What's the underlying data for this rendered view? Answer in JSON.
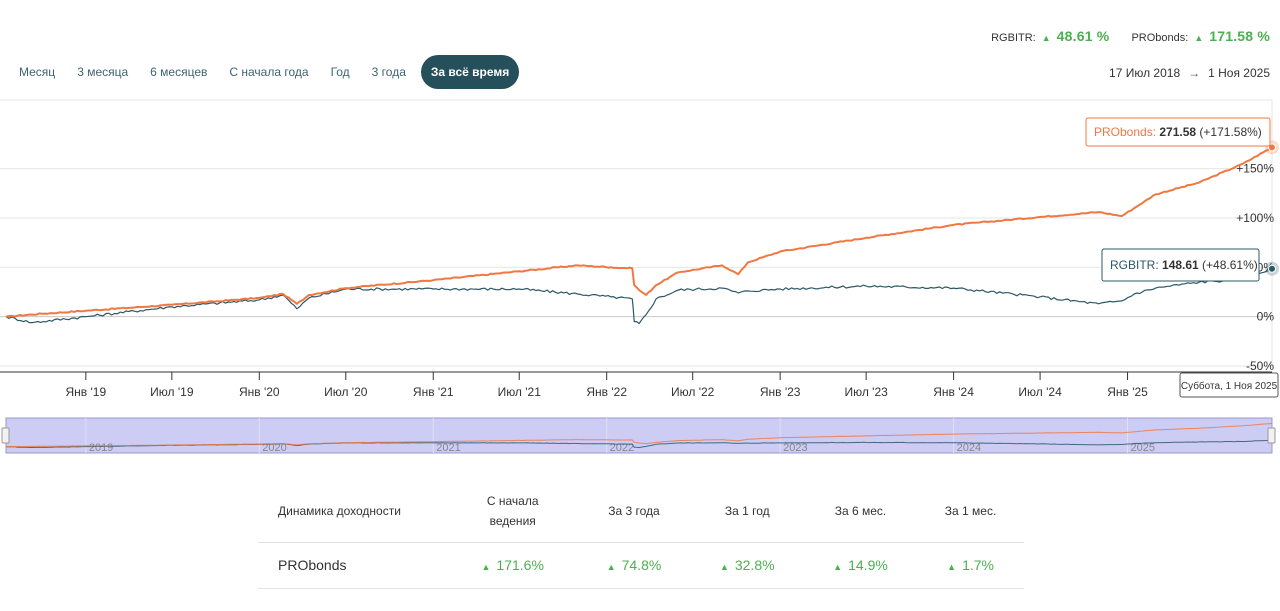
{
  "summary": [
    {
      "name": "RGBITR:",
      "value": "48.61 %"
    },
    {
      "name": "PRObonds:",
      "value": "171.58 %"
    }
  ],
  "tabs": [
    {
      "label": "Месяц",
      "active": false
    },
    {
      "label": "3 месяца",
      "active": false
    },
    {
      "label": "6 месяцев",
      "active": false
    },
    {
      "label": "С начала года",
      "active": false
    },
    {
      "label": "Год",
      "active": false
    },
    {
      "label": "3 года",
      "active": false
    },
    {
      "label": "За всё время",
      "active": true
    }
  ],
  "date_range": {
    "from": "17 Июл 2018",
    "arrow": "→",
    "to": "1 Ноя 2025"
  },
  "colors": {
    "probonds": "#f07840",
    "rgbitr": "#2d5866",
    "accent": "#264f5c",
    "positive": "#4caf50"
  },
  "chart_data": {
    "type": "line",
    "x_range": [
      "2018-07-17",
      "2025-11-01"
    ],
    "ylim": [
      -50,
      175
    ],
    "y_ticks": [
      {
        "value": 150,
        "label": "+150%"
      },
      {
        "value": 100,
        "label": "+100%"
      },
      {
        "value": 50,
        "label": "+50%"
      },
      {
        "value": 0,
        "label": "0%"
      },
      {
        "value": -50,
        "label": "-50%"
      }
    ],
    "x_ticks": [
      {
        "date": "2019-01-01",
        "label": "Янв '19"
      },
      {
        "date": "2019-07-01",
        "label": "Июл '19"
      },
      {
        "date": "2020-01-01",
        "label": "Янв '20"
      },
      {
        "date": "2020-07-01",
        "label": "Июл '20"
      },
      {
        "date": "2021-01-01",
        "label": "Янв '21"
      },
      {
        "date": "2021-07-01",
        "label": "Июл '21"
      },
      {
        "date": "2022-01-01",
        "label": "Янв '22"
      },
      {
        "date": "2022-07-01",
        "label": "Июл '22"
      },
      {
        "date": "2023-01-01",
        "label": "Янв '23"
      },
      {
        "date": "2023-07-01",
        "label": "Июл '23"
      },
      {
        "date": "2024-01-01",
        "label": "Янв '24"
      },
      {
        "date": "2024-07-01",
        "label": "Июл '24"
      },
      {
        "date": "2025-01-01",
        "label": "Янв '25"
      }
    ],
    "navigator_years": [
      {
        "date": "2019-01-01",
        "label": "2019"
      },
      {
        "date": "2020-01-01",
        "label": "2020"
      },
      {
        "date": "2021-01-01",
        "label": "2021"
      },
      {
        "date": "2022-01-01",
        "label": "2022"
      },
      {
        "date": "2023-01-01",
        "label": "2023"
      },
      {
        "date": "2024-01-01",
        "label": "2024"
      },
      {
        "date": "2025-01-01",
        "label": "2025"
      }
    ],
    "series": [
      {
        "name": "PRObonds",
        "color": "#f07840",
        "points": [
          [
            "2018-07-17",
            0
          ],
          [
            "2018-10-01",
            3
          ],
          [
            "2019-01-01",
            6
          ],
          [
            "2019-07-01",
            12
          ],
          [
            "2020-01-01",
            19
          ],
          [
            "2020-02-20",
            23
          ],
          [
            "2020-03-20",
            13
          ],
          [
            "2020-04-15",
            22
          ],
          [
            "2020-07-01",
            29
          ],
          [
            "2021-01-01",
            37
          ],
          [
            "2021-07-01",
            46
          ],
          [
            "2021-11-01",
            52
          ],
          [
            "2022-01-10",
            50
          ],
          [
            "2022-02-24",
            49
          ],
          [
            "2022-02-28",
            32
          ],
          [
            "2022-03-10",
            27
          ],
          [
            "2022-03-25",
            22
          ],
          [
            "2022-04-15",
            32
          ],
          [
            "2022-06-01",
            45
          ],
          [
            "2022-09-01",
            52
          ],
          [
            "2022-10-05",
            43
          ],
          [
            "2022-10-25",
            55
          ],
          [
            "2023-01-01",
            66
          ],
          [
            "2023-07-01",
            80
          ],
          [
            "2024-01-01",
            93
          ],
          [
            "2024-07-01",
            101
          ],
          [
            "2024-11-01",
            106
          ],
          [
            "2024-12-20",
            102
          ],
          [
            "2025-01-15",
            110
          ],
          [
            "2025-03-01",
            124
          ],
          [
            "2025-06-01",
            136
          ],
          [
            "2025-09-01",
            155
          ],
          [
            "2025-11-01",
            171.58
          ]
        ]
      },
      {
        "name": "RGBITR",
        "color": "#2d5866",
        "points": [
          [
            "2018-07-17",
            0
          ],
          [
            "2018-09-10",
            -6
          ],
          [
            "2019-01-01",
            0
          ],
          [
            "2019-07-01",
            10
          ],
          [
            "2020-01-01",
            17
          ],
          [
            "2020-02-20",
            22
          ],
          [
            "2020-03-20",
            8
          ],
          [
            "2020-04-15",
            19
          ],
          [
            "2020-07-01",
            28
          ],
          [
            "2021-01-01",
            28
          ],
          [
            "2021-07-01",
            28
          ],
          [
            "2021-11-01",
            23
          ],
          [
            "2022-01-10",
            20
          ],
          [
            "2022-02-24",
            18
          ],
          [
            "2022-02-28",
            -5
          ],
          [
            "2022-03-10",
            -7
          ],
          [
            "2022-03-25",
            2
          ],
          [
            "2022-04-15",
            18
          ],
          [
            "2022-06-01",
            27
          ],
          [
            "2022-09-01",
            29
          ],
          [
            "2022-10-05",
            24
          ],
          [
            "2022-10-25",
            26
          ],
          [
            "2023-01-01",
            28
          ],
          [
            "2023-07-01",
            31
          ],
          [
            "2024-01-01",
            29
          ],
          [
            "2024-07-01",
            20
          ],
          [
            "2024-11-01",
            13
          ],
          [
            "2024-12-20",
            16
          ],
          [
            "2025-01-15",
            23
          ],
          [
            "2025-03-01",
            29
          ],
          [
            "2025-06-01",
            35
          ],
          [
            "2025-09-01",
            38
          ],
          [
            "2025-11-01",
            48.61
          ]
        ]
      }
    ],
    "tooltips": [
      {
        "series": "PRObonds",
        "label": "PRObonds",
        "value": "271.58",
        "change": "(+171.58%)"
      },
      {
        "series": "RGBITR",
        "label": "RGBITR",
        "value": "148.61",
        "change": "(+48.61%)"
      }
    ],
    "crosshair_label": "Суббота, 1 Ноя 2025"
  },
  "performance_table": {
    "headers": [
      "Динамика доходности",
      "С начала\nведения",
      "За 3 года",
      "За 1 год",
      "За 6 мес.",
      "За 1 мес."
    ],
    "rows": [
      {
        "name": "PRObonds",
        "values": [
          "171.6%",
          "74.8%",
          "32.8%",
          "14.9%",
          "1.7%"
        ]
      }
    ]
  }
}
